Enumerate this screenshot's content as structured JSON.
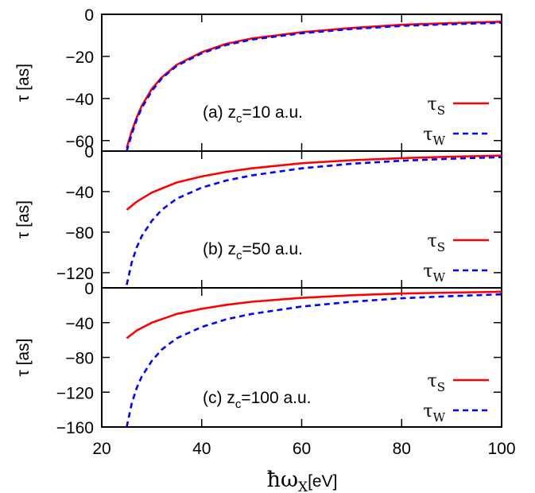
{
  "chart_data": [
    {
      "type": "line",
      "annotation": "(a) z_c=10 a.u.",
      "ylabel": "τ [as]",
      "ylim": [
        -65,
        0
      ],
      "yticks": [
        0,
        -20,
        -40,
        -60
      ],
      "xlim": [
        20,
        100
      ],
      "series": [
        {
          "name": "τS",
          "color": "#ff0000",
          "style": "solid",
          "x": [
            25,
            26,
            27,
            28,
            30,
            32,
            35,
            40,
            45,
            50,
            60,
            70,
            80,
            90,
            100
          ],
          "values": [
            -63.5,
            -55.5,
            -49,
            -43.5,
            -35.5,
            -30,
            -24,
            -18,
            -14,
            -11.5,
            -8.5,
            -6.5,
            -5,
            -4.2,
            -3.5
          ]
        },
        {
          "name": "τW",
          "color": "#0000ff",
          "style": "dashed",
          "x": [
            25,
            26,
            27,
            28,
            30,
            32,
            35,
            40,
            45,
            50,
            60,
            70,
            80,
            90,
            100
          ],
          "values": [
            -65,
            -57,
            -50,
            -44.5,
            -36.5,
            -30.5,
            -24.5,
            -18.5,
            -14.5,
            -12,
            -9,
            -7,
            -5.5,
            -4.7,
            -4
          ]
        }
      ]
    },
    {
      "type": "line",
      "annotation": "(b) z_c=50 a.u.",
      "ylabel": "τ [as]",
      "ylim": [
        -135,
        0
      ],
      "yticks": [
        0,
        -40,
        -80,
        -120
      ],
      "xlim": [
        20,
        100
      ],
      "series": [
        {
          "name": "τS",
          "color": "#ff0000",
          "style": "solid",
          "x": [
            25,
            27,
            30,
            35,
            40,
            45,
            50,
            60,
            70,
            80,
            90,
            100
          ],
          "values": [
            -58,
            -50,
            -41,
            -31,
            -25,
            -20.5,
            -17,
            -12,
            -9,
            -7,
            -5.5,
            -4.5
          ]
        },
        {
          "name": "τW",
          "color": "#0000ff",
          "style": "dashed",
          "x": [
            25,
            26,
            27,
            28,
            30,
            32,
            35,
            40,
            45,
            50,
            60,
            70,
            80,
            90,
            100
          ],
          "values": [
            -132,
            -110,
            -95,
            -84,
            -69,
            -58,
            -47,
            -36,
            -29,
            -24,
            -17,
            -12.5,
            -9.5,
            -7.5,
            -6
          ]
        }
      ]
    },
    {
      "type": "line",
      "annotation": "(c) z_c=100 a.u.",
      "ylabel": "τ [as]",
      "ylim": [
        -160,
        0
      ],
      "yticks": [
        0,
        -40,
        -80,
        -120,
        -160
      ],
      "xlim": [
        20,
        100
      ],
      "xticks": [
        20,
        40,
        60,
        80,
        100
      ],
      "xlabel": "ħω_X[eV]",
      "series": [
        {
          "name": "τS",
          "color": "#ff0000",
          "style": "solid",
          "x": [
            25,
            27,
            30,
            35,
            40,
            45,
            50,
            60,
            70,
            80,
            90,
            100
          ],
          "values": [
            -58,
            -49,
            -40,
            -30,
            -24,
            -19.5,
            -16,
            -11.5,
            -8.5,
            -6.5,
            -5.5,
            -4.5
          ]
        },
        {
          "name": "τW",
          "color": "#0000ff",
          "style": "dashed",
          "x": [
            25,
            26,
            27,
            28,
            30,
            32,
            35,
            40,
            45,
            50,
            60,
            70,
            80,
            90,
            100
          ],
          "values": [
            -160,
            -133,
            -115,
            -102,
            -84,
            -71,
            -58,
            -45,
            -36,
            -30,
            -21.5,
            -16,
            -12,
            -9.5,
            -7.5
          ]
        }
      ]
    }
  ]
}
